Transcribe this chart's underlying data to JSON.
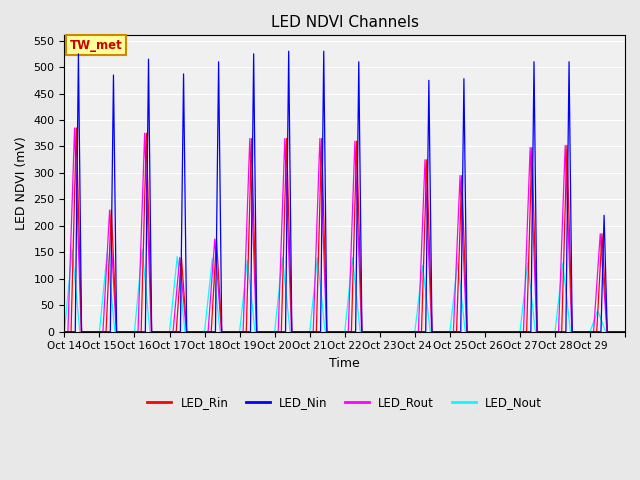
{
  "title": "LED NDVI Channels",
  "xlabel": "Time",
  "ylabel": "LED NDVI (mV)",
  "ylim": [
    0,
    560
  ],
  "yticks": [
    0,
    50,
    100,
    150,
    200,
    250,
    300,
    350,
    400,
    450,
    500,
    550
  ],
  "xtick_labels": [
    "Oct 14",
    "Oct 15",
    "Oct 16",
    "Oct 17",
    "Oct 18",
    "Oct 19",
    "Oct 20",
    "Oct 21",
    "Oct 22",
    "Oct 23",
    "Oct 24",
    "Oct 25",
    "Oct 26",
    "Oct 27",
    "Oct 28",
    "Oct 29"
  ],
  "legend_colors": [
    "#ff0000",
    "#0000ff",
    "#ff00ff",
    "#00ffff"
  ],
  "legend_entries": [
    "LED_Rin",
    "LED_Nin",
    "LED_Rout",
    "LED_Nout"
  ],
  "annotation_text": "TW_met",
  "annotation_bg": "#ffff99",
  "annotation_border": "#cc8800",
  "fig_bg": "#e8e8e8",
  "ax_bg": "#f0f0f0",
  "num_days": 16,
  "peaks_Nin": [
    525,
    485,
    515,
    487,
    510,
    525,
    530,
    530,
    510,
    0,
    475,
    478,
    0,
    510,
    510,
    220
  ],
  "peaks_Rin": [
    385,
    230,
    375,
    140,
    175,
    365,
    365,
    365,
    360,
    0,
    325,
    295,
    0,
    348,
    352,
    185
  ],
  "peaks_Rout": [
    385,
    230,
    375,
    140,
    175,
    365,
    365,
    365,
    360,
    0,
    325,
    295,
    0,
    348,
    352,
    185
  ],
  "peaks_Nout": [
    155,
    150,
    155,
    142,
    138,
    135,
    140,
    140,
    140,
    0,
    125,
    130,
    0,
    130,
    130,
    40
  ]
}
